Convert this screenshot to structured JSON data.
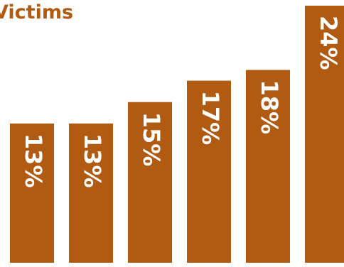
{
  "chart_data": {
    "type": "bar",
    "title": "Victims",
    "categories": [
      null,
      null,
      null,
      null,
      null,
      null
    ],
    "values": [
      13,
      13,
      15,
      17,
      18,
      24
    ],
    "value_labels": [
      "13%",
      "13%",
      "15%",
      "17%",
      "18%",
      "24%"
    ],
    "color": "#b05a12"
  }
}
